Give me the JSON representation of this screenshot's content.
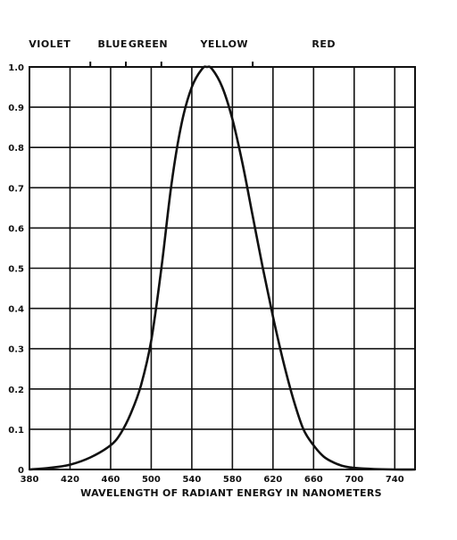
{
  "chart_data": {
    "type": "line",
    "title": "",
    "xlabel": "WAVELENGTH OF RADIANT ENERGY IN NANOMETERS",
    "ylabel": "",
    "xlim": [
      380,
      760
    ],
    "ylim": [
      0,
      1.0
    ],
    "x_ticks": [
      "380",
      "420",
      "460",
      "500",
      "540",
      "580",
      "620",
      "660",
      "700",
      "740"
    ],
    "y_ticks": [
      "0",
      "0.1",
      "0.2",
      "0.3",
      "0.4",
      "0.5",
      "0.6",
      "0.7",
      "0.8",
      "0.9",
      "1.0"
    ],
    "grid": true,
    "color_bands": [
      {
        "label": "VIOLET",
        "center": 400
      },
      {
        "label": "BLUE",
        "center": 462
      },
      {
        "label": "GREEN",
        "center": 497
      },
      {
        "label": "YELLOW",
        "center": 572
      },
      {
        "label": "RED",
        "center": 670
      }
    ],
    "band_boundaries": [
      440,
      475,
      510,
      600
    ],
    "series": [
      {
        "x": [
          380,
          400,
          420,
          440,
          460,
          470,
          480,
          490,
          500,
          510,
          520,
          530,
          540,
          550,
          555,
          560,
          570,
          580,
          590,
          600,
          610,
          620,
          630,
          640,
          650,
          660,
          670,
          680,
          690,
          700,
          720,
          740,
          760
        ],
        "y": [
          0.0,
          0.004,
          0.012,
          0.03,
          0.06,
          0.09,
          0.14,
          0.21,
          0.32,
          0.5,
          0.71,
          0.86,
          0.95,
          0.995,
          1.0,
          0.995,
          0.95,
          0.87,
          0.76,
          0.63,
          0.5,
          0.38,
          0.27,
          0.175,
          0.1,
          0.06,
          0.032,
          0.017,
          0.008,
          0.004,
          0.001,
          0.0,
          0.0
        ]
      }
    ]
  }
}
